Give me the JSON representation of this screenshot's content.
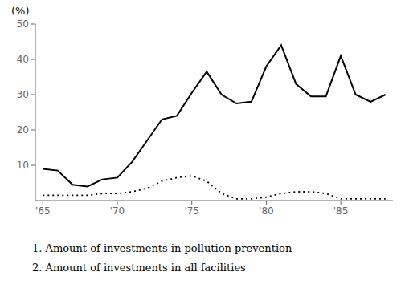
{
  "chart_data": {
    "type": "line",
    "ylabel": "(%)",
    "annotations": [
      "1. Amount of investments in pollution prevention",
      "2. Amount of investments in all facilities"
    ],
    "x": [
      1965,
      1966,
      1967,
      1968,
      1969,
      1970,
      1971,
      1972,
      1973,
      1974,
      1975,
      1976,
      1977,
      1978,
      1979,
      1980,
      1981,
      1982,
      1983,
      1984,
      1985,
      1986,
      1987,
      1988
    ],
    "series": [
      {
        "color": "#000000",
        "line_style": "solid",
        "values": [
          9.0,
          8.5,
          4.5,
          4.0,
          6.0,
          6.5,
          11.0,
          17.0,
          23.0,
          24.0,
          30.5,
          36.5,
          30.0,
          27.5,
          28.0,
          38.0,
          44.0,
          33.0,
          29.5,
          29.5,
          41.0,
          30.0,
          28.0,
          30.0
        ]
      },
      {
        "color": "#000000",
        "line_style": "dotted",
        "values": [
          1.5,
          1.5,
          1.5,
          1.5,
          2.0,
          2.0,
          2.5,
          3.5,
          5.5,
          6.5,
          7.0,
          5.5,
          2.0,
          0.5,
          0.5,
          1.0,
          2.0,
          2.5,
          2.5,
          2.0,
          0.5,
          0.5,
          0.5,
          0.5
        ]
      }
    ],
    "xlim": [
      1964.5,
      1988.5
    ],
    "ylim": [
      0,
      50
    ],
    "xticks": [
      {
        "value": 1965,
        "label": "'65"
      },
      {
        "value": 1970,
        "label": "'70"
      },
      {
        "value": 1975,
        "label": "'75"
      },
      {
        "value": 1980,
        "label": "'80"
      },
      {
        "value": 1985,
        "label": "'85"
      }
    ],
    "yticks": [
      10,
      20,
      30,
      40,
      50
    ],
    "grid": false
  }
}
